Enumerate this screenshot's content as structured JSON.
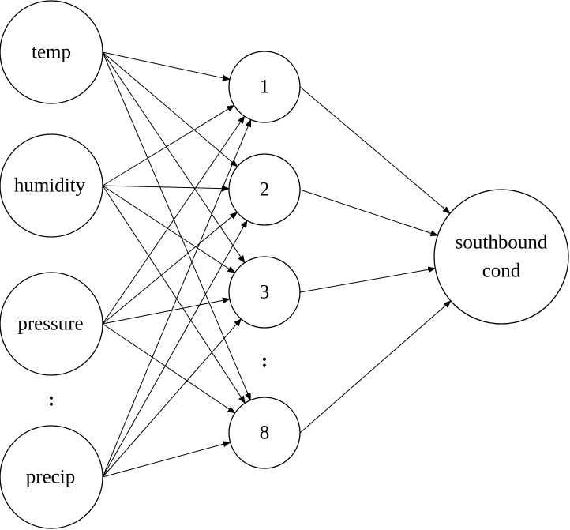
{
  "diagram": {
    "type": "neural-network",
    "input_layer": {
      "nodes": [
        {
          "id": "temp",
          "label": "temp"
        },
        {
          "id": "humidity",
          "label": "humidity"
        },
        {
          "id": "pressure",
          "label": "pressure"
        },
        {
          "id": "precip",
          "label": "precip"
        }
      ],
      "ellipsis": ":"
    },
    "hidden_layer": {
      "nodes": [
        {
          "id": "h1",
          "label": "1"
        },
        {
          "id": "h2",
          "label": "2"
        },
        {
          "id": "h3",
          "label": "3"
        },
        {
          "id": "h8",
          "label": "8"
        }
      ],
      "ellipsis": ":"
    },
    "output_layer": {
      "nodes": [
        {
          "id": "out",
          "label_lines": [
            "southbound",
            "cond"
          ]
        }
      ]
    },
    "edges": [
      {
        "from": "temp",
        "to": "h1"
      },
      {
        "from": "temp",
        "to": "h2"
      },
      {
        "from": "temp",
        "to": "h3"
      },
      {
        "from": "temp",
        "to": "h8"
      },
      {
        "from": "humidity",
        "to": "h1"
      },
      {
        "from": "humidity",
        "to": "h2"
      },
      {
        "from": "humidity",
        "to": "h3"
      },
      {
        "from": "humidity",
        "to": "h8"
      },
      {
        "from": "pressure",
        "to": "h1"
      },
      {
        "from": "pressure",
        "to": "h2"
      },
      {
        "from": "pressure",
        "to": "h3"
      },
      {
        "from": "pressure",
        "to": "h8"
      },
      {
        "from": "precip",
        "to": "h1"
      },
      {
        "from": "precip",
        "to": "h2"
      },
      {
        "from": "precip",
        "to": "h3"
      },
      {
        "from": "precip",
        "to": "h8"
      },
      {
        "from": "h1",
        "to": "out"
      },
      {
        "from": "h2",
        "to": "out"
      },
      {
        "from": "h3",
        "to": "out"
      },
      {
        "from": "h8",
        "to": "out"
      }
    ]
  }
}
